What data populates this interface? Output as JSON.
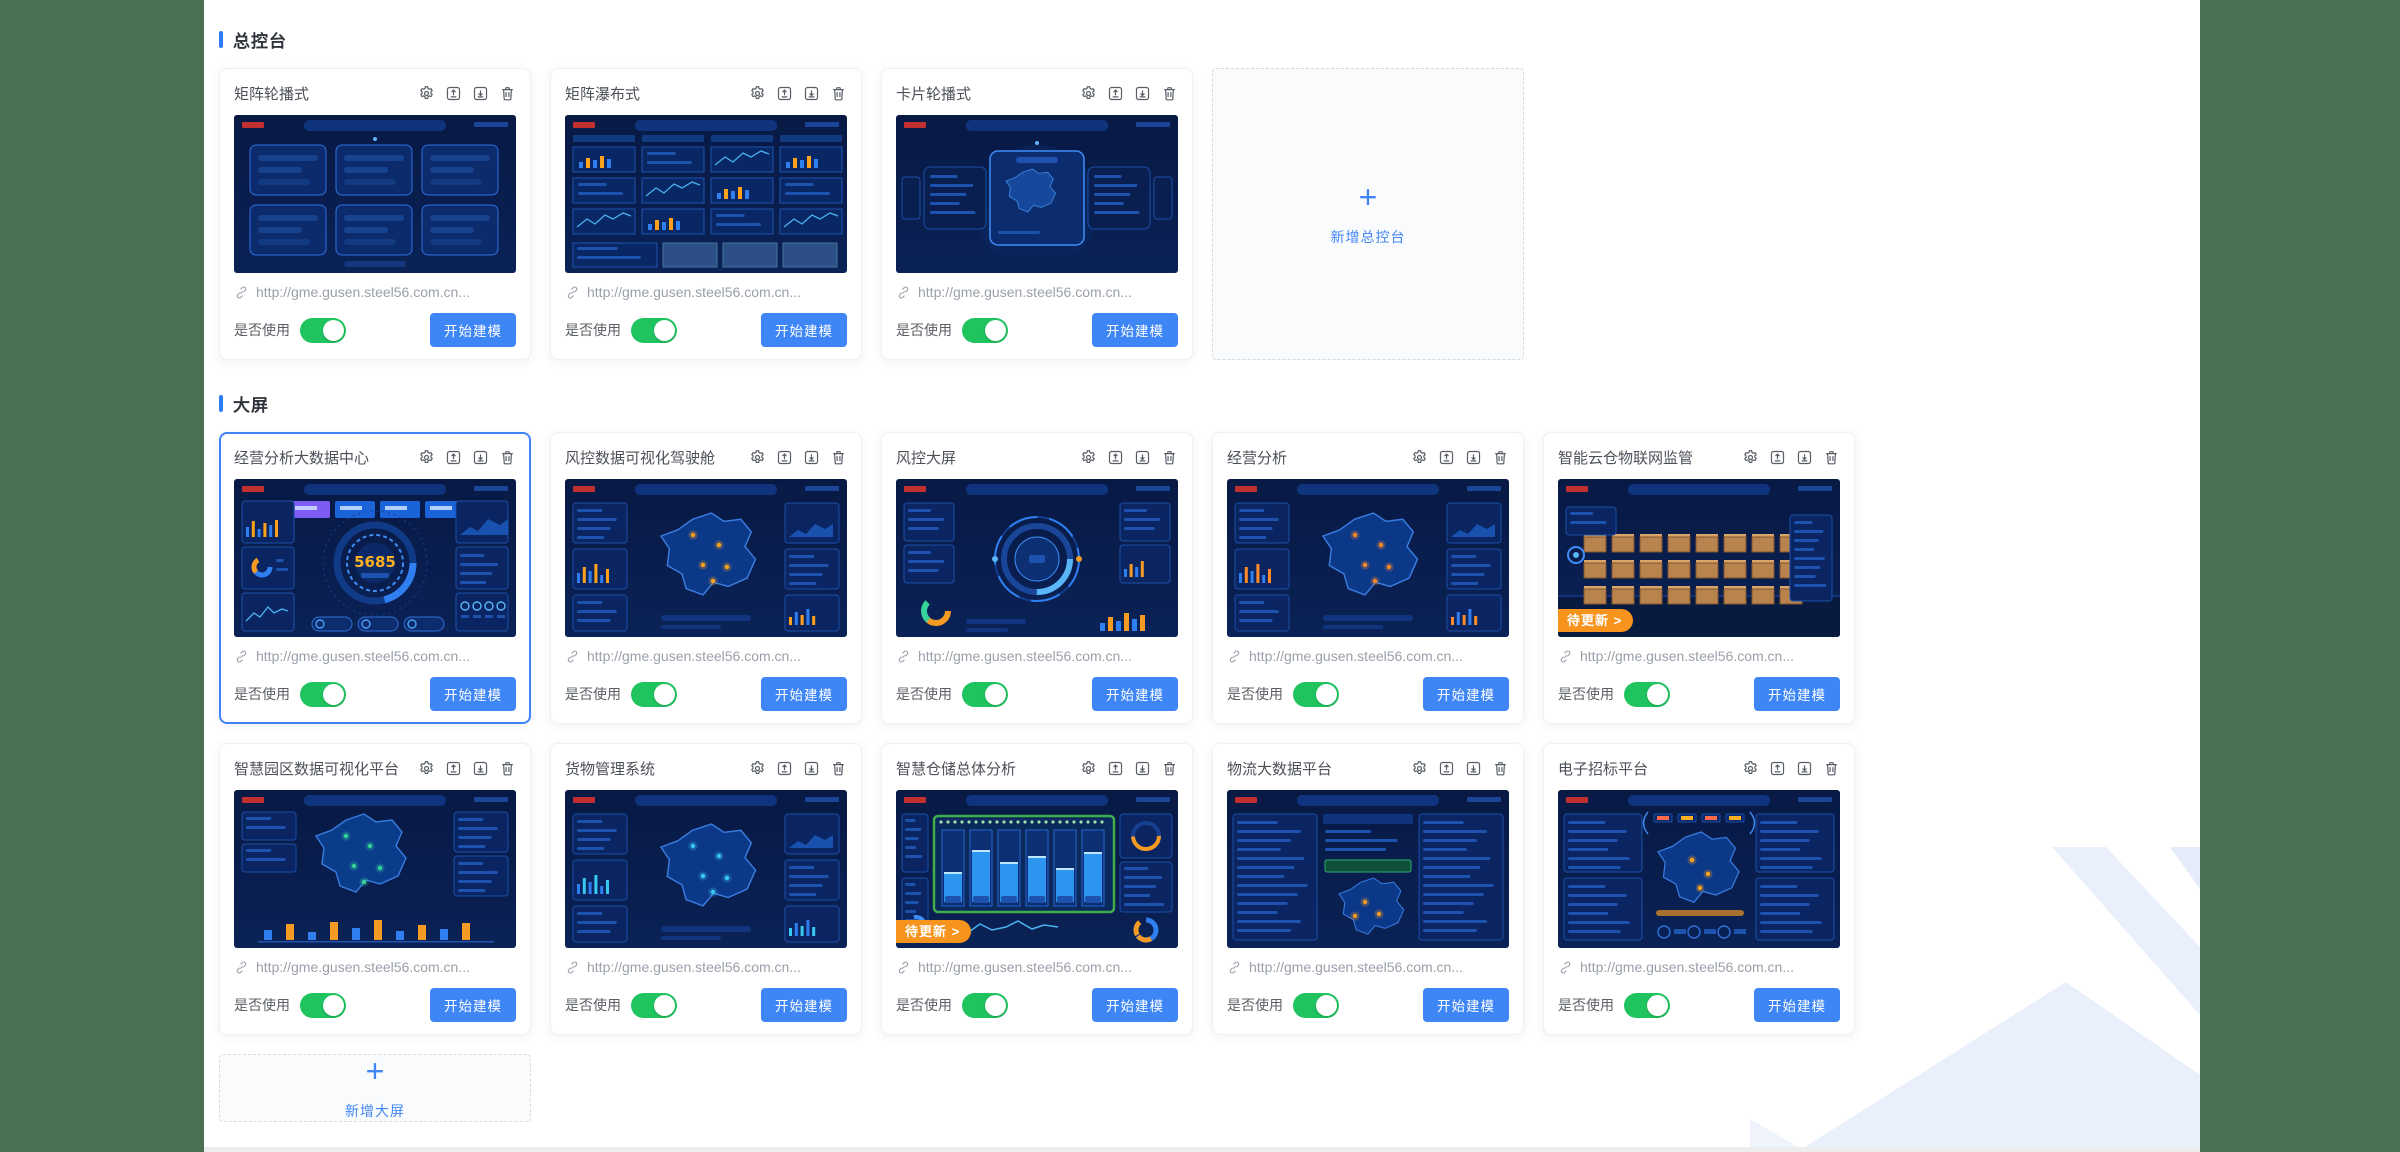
{
  "sections": [
    {
      "title": "总控台",
      "cards": [
        {
          "title": "矩阵轮播式",
          "preview": {
            "variant": "panels"
          }
        },
        {
          "title": "矩阵瀑布式",
          "preview": {
            "variant": "dense"
          }
        },
        {
          "title": "卡片轮播式",
          "preview": {
            "variant": "carousel"
          }
        },
        {
          "type": "add",
          "label": "新增总控台"
        }
      ]
    },
    {
      "title": "大屏",
      "cards": [
        {
          "title": "经营分析大数据中心",
          "selected": true,
          "preview": {
            "variant": "gauge",
            "value": "5685"
          }
        },
        {
          "title": "风控数据可视化驾驶舱",
          "preview": {
            "variant": "map",
            "accent": "#ffa21a"
          }
        },
        {
          "title": "风控大屏",
          "preview": {
            "variant": "rings"
          }
        },
        {
          "title": "经营分析",
          "preview": {
            "variant": "map",
            "accent": "#ff8a2a"
          }
        },
        {
          "title": "智能云仓物联网监管",
          "badge": "待更新 >",
          "preview": {
            "variant": "warehouse"
          }
        },
        {
          "title": "智慧园区数据可视化平台",
          "preview": {
            "variant": "parkmap"
          }
        },
        {
          "title": "货物管理系统",
          "preview": {
            "variant": "map",
            "accent": "#38c8f0"
          }
        },
        {
          "title": "智慧仓储总体分析",
          "badge": "待更新 >",
          "preview": {
            "variant": "racks"
          }
        },
        {
          "title": "物流大数据平台",
          "preview": {
            "variant": "tables"
          }
        },
        {
          "title": "电子招标平台",
          "preview": {
            "variant": "tender"
          }
        },
        {
          "type": "add",
          "label": "新增大屏"
        }
      ]
    }
  ],
  "card_common": {
    "url": "http://gme.gusen.steel56.com.cn...",
    "use_label": "是否使用",
    "modeling_button": "开始建模",
    "toggle_state": "on"
  },
  "actions": [
    "settings",
    "upload",
    "download",
    "delete"
  ],
  "colors": {
    "accent_blue": "#3e86f6",
    "toggle_green": "#1fc45f",
    "badge_orange": "#f7941e",
    "selected_border": "#3f83f8",
    "side_background": "#4b7154",
    "preview_background": "#081944"
  }
}
